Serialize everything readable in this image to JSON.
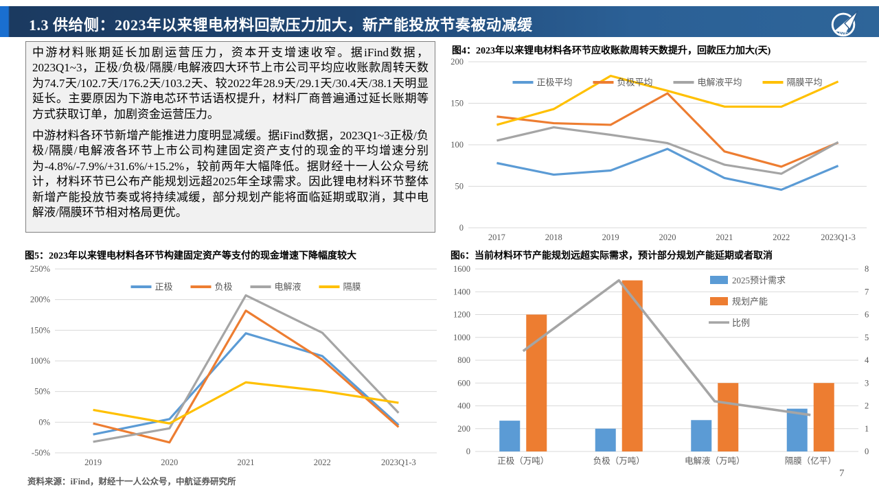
{
  "header": {
    "title": "1.3 供给侧：2023年以来锂电材料回款压力加大，新产能投放节奏被动减缓",
    "logo_text": "AVIC"
  },
  "text_panel": {
    "paragraphs": [
      "中游材料账期延长加剧运营压力，资本开支增速收窄。据iFind数据，2023Q1~3，正极/负极/隔膜/电解液四大环节上市公司平均应收账款周转天数为74.7天/102.7天/176.2天/103.2天、较2022年28.9天/29.1天/30.4天/38.1天明显延长。主要原因为下游电芯环节话语权提升，材料厂商普遍通过延长账期等方式获取订单，加剧资金运营压力。",
      "中游材料各环节新增产能推进力度明显减缓。据iFind数据，2023Q1~3正极/负极/隔膜/电解液各环节上市公司构建固定资产支付的现金的平均增速分别为-4.8%/-7.9%/+31.6%/+15.2%，较前两年大幅降低。据财经十一人公众号统计，材料环节已公布产能规划远超2025年全球需求。因此锂电材料环节整体新增产能投放节奏或将持续减缓，部分规划产能将面临延期或取消，其中电解液/隔膜环节相对格局更优。"
    ]
  },
  "colors": {
    "series_blue": "#5B9BD5",
    "series_orange": "#ED7D31",
    "series_gray": "#A5A5A5",
    "series_yellow": "#FFC000",
    "grid": "#d9d9d9",
    "tick_text": "#595959"
  },
  "chart_data": [
    {
      "id": "fig4",
      "type": "line",
      "title": "图4：2023年以来锂电材料各环节应收账款周转天数提升，回款压力加大(天)",
      "categories": [
        "2017",
        "2018",
        "2019",
        "2020",
        "2021",
        "2022",
        "2023Q1-3"
      ],
      "series": [
        {
          "name": "正极平均",
          "color": "#5B9BD5",
          "values": [
            78,
            64,
            69,
            95,
            60,
            45.8,
            74.7
          ]
        },
        {
          "name": "负极平均",
          "color": "#ED7D31",
          "values": [
            134,
            126,
            124,
            162,
            92,
            73.6,
            102.7
          ]
        },
        {
          "name": "电解液平均",
          "color": "#A5A5A5",
          "values": [
            105,
            121,
            112,
            102,
            76,
            65.1,
            103.2
          ]
        },
        {
          "name": "隔膜平均",
          "color": "#FFC000",
          "values": [
            124,
            143,
            183,
            165,
            146,
            145.8,
            176.2
          ]
        }
      ],
      "ylim": [
        0,
        200
      ],
      "ytick_step": 50,
      "ysuffix": "",
      "grid": true,
      "legend": "top-horizontal"
    },
    {
      "id": "fig5",
      "type": "line",
      "title": "图5：2023年以来锂电材料各环节构建固定资产等支付的现金增速下降幅度较大",
      "categories": [
        "2019",
        "2020",
        "2021",
        "2022",
        "2023Q1-3"
      ],
      "series": [
        {
          "name": "正极",
          "color": "#5B9BD5",
          "values": [
            -20,
            5,
            145,
            108,
            -4.8
          ]
        },
        {
          "name": "负极",
          "color": "#ED7D31",
          "values": [
            -2,
            -33,
            182,
            102,
            -7.9
          ]
        },
        {
          "name": "电解液",
          "color": "#A5A5A5",
          "values": [
            -32,
            -10,
            207,
            146,
            15.2
          ]
        },
        {
          "name": "隔膜",
          "color": "#FFC000",
          "values": [
            20,
            -2,
            65,
            51,
            31.6
          ]
        }
      ],
      "ylim": [
        -50,
        250
      ],
      "ytick_step": 50,
      "ysuffix": "%",
      "grid": true,
      "legend": "top-horizontal"
    },
    {
      "id": "fig6",
      "type": "combo",
      "title": "图6：当前材料环节产能规划远超实际需求，预计部分规划产能延期或者取消",
      "categories": [
        "正极（万吨）",
        "负极（万吨）",
        "电解液（万吨）",
        "隔膜（亿平）"
      ],
      "bar_series": [
        {
          "name": "2025预计需求",
          "color": "#5B9BD5",
          "values": [
            270,
            200,
            275,
            375
          ]
        },
        {
          "name": "规划产能",
          "color": "#ED7D31",
          "values": [
            1200,
            1500,
            600,
            600
          ]
        }
      ],
      "line_series": [
        {
          "name": "比例",
          "color": "#A5A5A5",
          "axis": "right",
          "values": [
            4.4,
            7.5,
            2.2,
            1.6
          ]
        }
      ],
      "ylim_left": [
        0,
        1600
      ],
      "ytick_step_left": 200,
      "ylim_right": [
        0,
        8
      ],
      "ytick_step_right": 1,
      "grid": true,
      "legend": "right-vertical"
    }
  ],
  "footer": {
    "source": "资料来源：iFind，财经十一人公众号，中航证券研究所",
    "page_number": "7"
  }
}
